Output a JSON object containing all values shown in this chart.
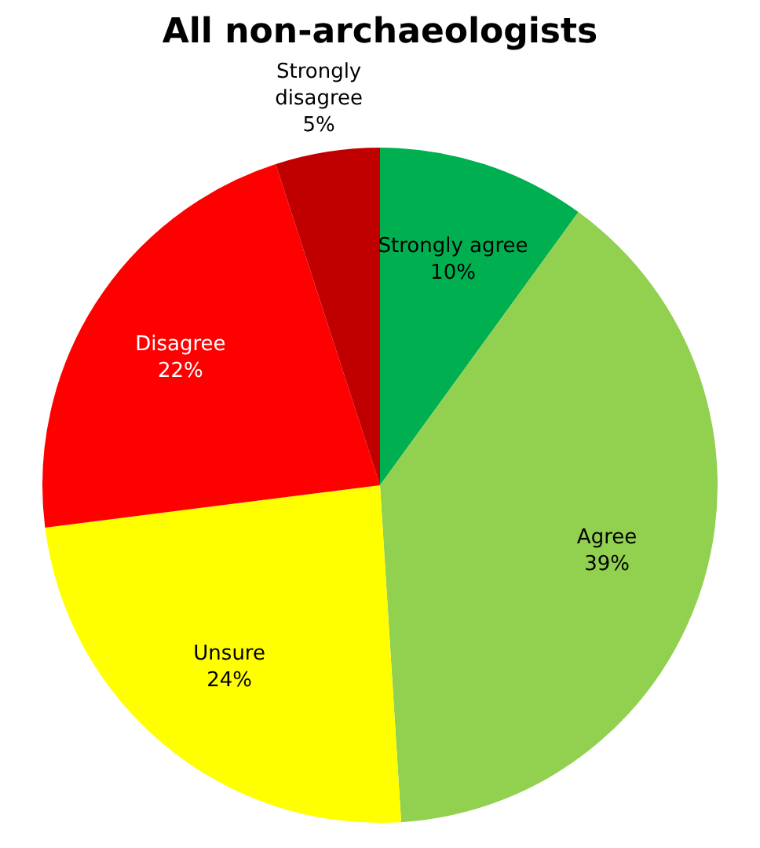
{
  "chart_data": {
    "type": "pie",
    "title": "All non-archaeologists",
    "categories": [
      "Strongly agree",
      "Agree",
      "Unsure",
      "Disagree",
      "Strongly disagree"
    ],
    "values": [
      10,
      39,
      24,
      22,
      5
    ],
    "value_labels": [
      "10%",
      "39%",
      "24%",
      "22%",
      "5%"
    ],
    "colors": [
      "#00b050",
      "#92d050",
      "#ffff00",
      "#ff0000",
      "#c00000"
    ],
    "legend": false
  }
}
